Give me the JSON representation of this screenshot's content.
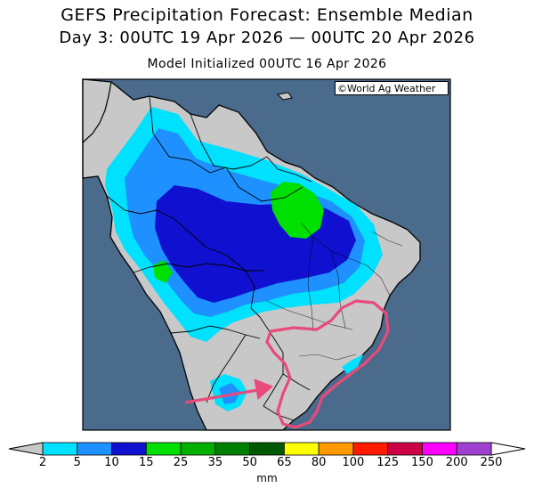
{
  "header": {
    "title": "GEFS Precipitation Forecast: Ensemble Median",
    "period": "Day 3: 00UTC 19 Apr 2026 — 00UTC 20 Apr 2026",
    "init": "Model Initialized 00UTC 16 Apr 2026"
  },
  "credit": "©World Ag Weather",
  "colorbar": {
    "units": "mm",
    "levels": [
      "2",
      "5",
      "10",
      "15",
      "25",
      "35",
      "50",
      "65",
      "80",
      "100",
      "125",
      "150",
      "200",
      "250"
    ],
    "colors": [
      "#00e0ff",
      "#1e90ff",
      "#1010d0",
      "#00e000",
      "#00b000",
      "#008000",
      "#005800",
      "#ffff00",
      "#ff9900",
      "#ff1a00",
      "#cc0044",
      "#ff00ff",
      "#a040d0"
    ],
    "under_color": "#c8c8c8",
    "over_color": "#ffffff"
  },
  "map": {
    "ocean_color": "#4a6b8c",
    "land_color": "#c8c8c8",
    "highlight_color": "#e84a7a"
  }
}
